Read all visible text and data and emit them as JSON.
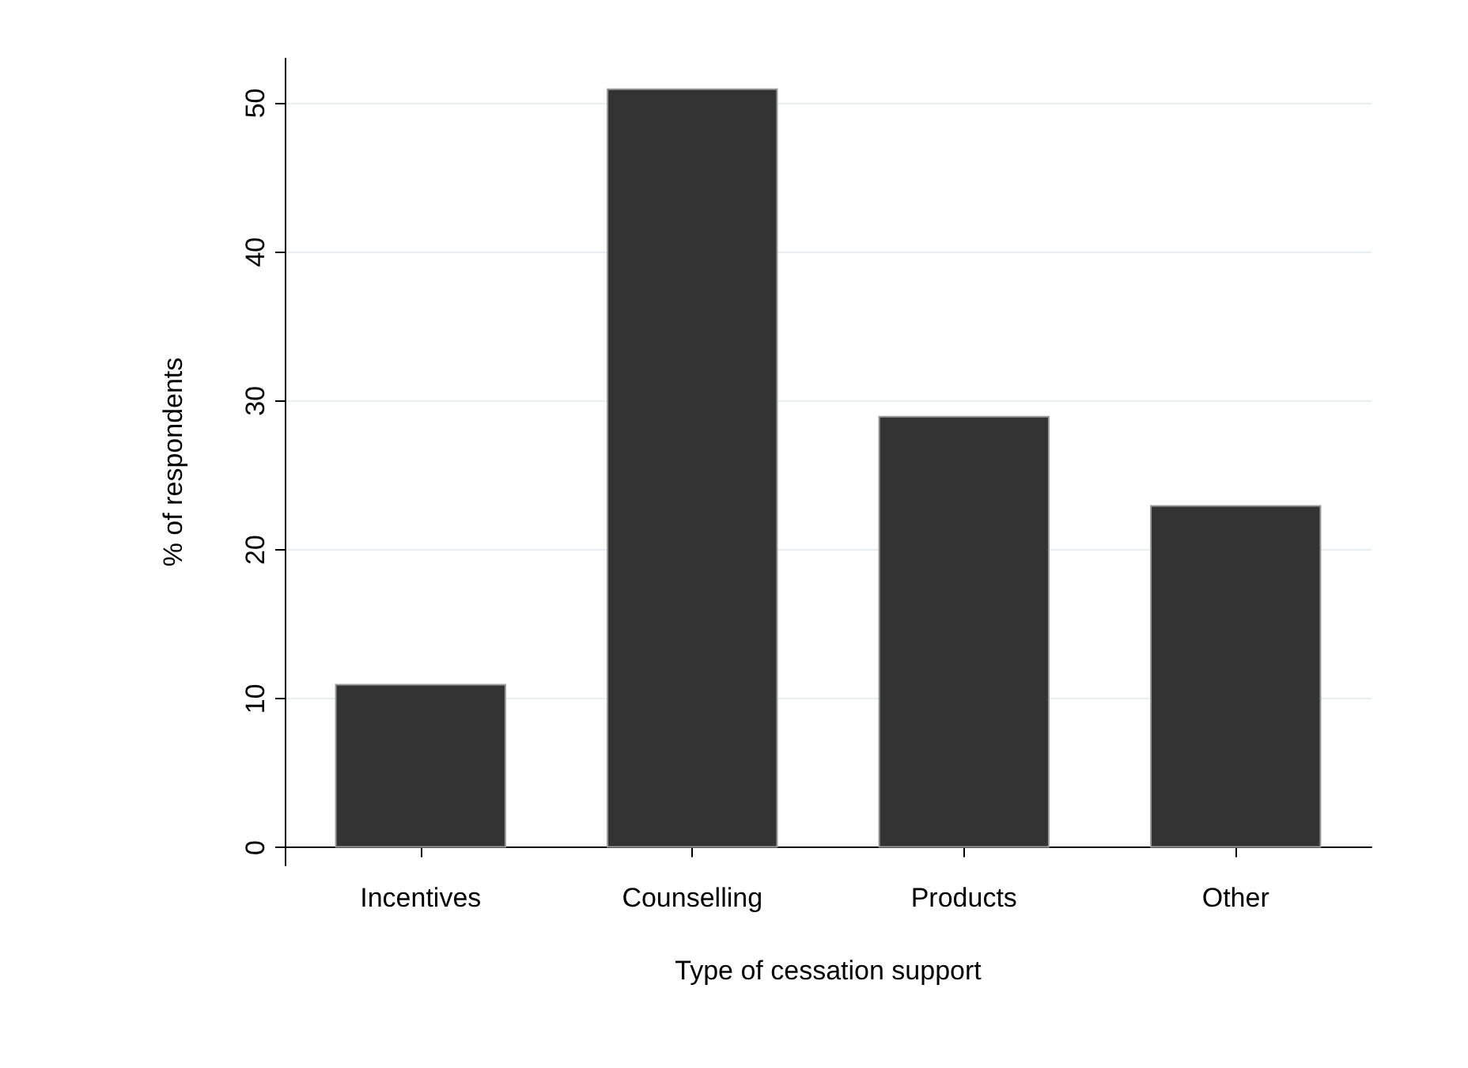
{
  "chart_data": {
    "type": "bar",
    "xlabel": "Type of cessation support",
    "ylabel": "% of respondents",
    "categories": [
      "Incentives",
      "Counselling",
      "Products",
      "Other"
    ],
    "values": [
      11,
      51,
      29,
      23
    ],
    "color": "#333333",
    "ylim": [
      -1.2,
      53
    ],
    "yticks": [
      0,
      10,
      20,
      30,
      40,
      50
    ],
    "grid": "y"
  }
}
